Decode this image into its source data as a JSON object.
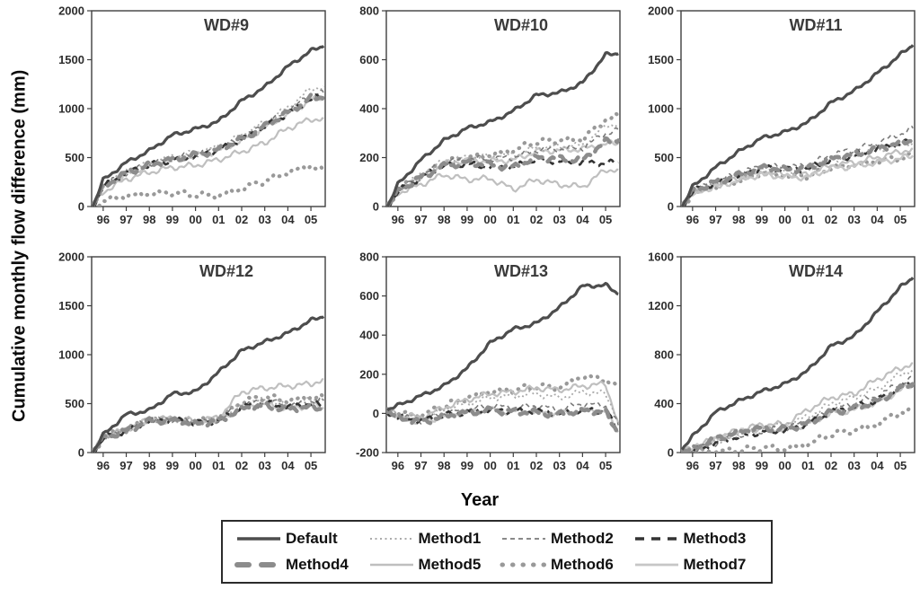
{
  "figure": {
    "y_axis_label": "Cumulative monthly flow difference (mm)",
    "x_axis_label": "Year",
    "frame_color": "#3f3f3f",
    "background": "#ffffff"
  },
  "chart_data": {
    "type": "line",
    "ylabel": "Cumulative monthly flow difference (mm)",
    "xlabel": "Year",
    "x": [
      1995.55,
      1996,
      1997,
      1998,
      1999,
      2000,
      2001,
      2002,
      2003,
      2004,
      2005,
      2005.55
    ],
    "xlim": [
      1995.5,
      2005.62
    ],
    "xtick_years": [
      1996,
      1997,
      1998,
      1999,
      2000,
      2001,
      2002,
      2003,
      2004,
      2005
    ],
    "xtick_labels": [
      "96",
      "97",
      "98",
      "99",
      "00",
      "01",
      "02",
      "03",
      "04",
      "05"
    ],
    "grid": false,
    "legend_position": "bottom",
    "series_styles": [
      {
        "name": "Default",
        "color": "#4d4d4d",
        "width": 3.2,
        "dash": "",
        "cap": "butt",
        "sample_dash": "",
        "sample_width": 3.5
      },
      {
        "name": "Method1",
        "color": "#aaaaaa",
        "width": 1.8,
        "dash": "2 3",
        "cap": "butt",
        "sample_dash": "2 3.5",
        "sample_width": 2
      },
      {
        "name": "Method2",
        "color": "#7a7a7a",
        "width": 1.6,
        "dash": "5 4",
        "cap": "butt",
        "sample_dash": "5 4",
        "sample_width": 1.8
      },
      {
        "name": "Method3",
        "color": "#333333",
        "width": 2.6,
        "dash": "8 6",
        "cap": "butt",
        "sample_dash": "10 8",
        "sample_width": 3.4
      },
      {
        "name": "Method4",
        "color": "#8c8c8c",
        "width": 4.5,
        "dash": "9 8",
        "cap": "round",
        "sample_dash": "13 14",
        "sample_width": 6
      },
      {
        "name": "Method5",
        "color": "#bfbfbf",
        "width": 2.2,
        "dash": "",
        "cap": "butt",
        "sample_dash": "",
        "sample_width": 2.4
      },
      {
        "name": "Method6",
        "color": "#999999",
        "width": 4.2,
        "dash": "0.5 8",
        "cap": "round",
        "sample_dash": "0.5 11",
        "sample_width": 5
      },
      {
        "name": "Method7",
        "color": "#c6c6c6",
        "width": 2.4,
        "dash": "",
        "cap": "butt",
        "sample_dash": "",
        "sample_width": 2.8
      }
    ],
    "panels": [
      {
        "title": "WD#9",
        "ylim": [
          0,
          2000
        ],
        "yticks": [
          0,
          500,
          1000,
          1500,
          2000
        ],
        "series": [
          {
            "name": "Default",
            "values": [
              0,
              270,
              450,
              570,
              730,
              790,
              870,
              1080,
              1220,
              1430,
              1590,
              1640
            ]
          },
          {
            "name": "Method1",
            "values": [
              0,
              210,
              360,
              440,
              510,
              550,
              610,
              730,
              860,
              1010,
              1200,
              1230
            ]
          },
          {
            "name": "Method2",
            "values": [
              0,
              205,
              350,
              430,
              495,
              535,
              590,
              700,
              830,
              980,
              1140,
              1160
            ]
          },
          {
            "name": "Method3",
            "values": [
              0,
              200,
              340,
              420,
              480,
              520,
              575,
              680,
              810,
              950,
              1100,
              1120
            ]
          },
          {
            "name": "Method4",
            "values": [
              0,
              200,
              345,
              425,
              485,
              525,
              580,
              690,
              820,
              960,
              1110,
              1120
            ]
          },
          {
            "name": "Method5",
            "values": [
              0,
              150,
              280,
              350,
              400,
              420,
              480,
              560,
              650,
              800,
              890,
              900
            ]
          },
          {
            "name": "Method6",
            "values": [
              0,
              60,
              110,
              130,
              140,
              120,
              110,
              180,
              260,
              350,
              420,
              360
            ]
          },
          {
            "name": "Method7",
            "values": [
              0,
              195,
              335,
              415,
              475,
              515,
              570,
              675,
              805,
              945,
              1090,
              1110
            ]
          }
        ]
      },
      {
        "title": "WD#10",
        "ylim": [
          0,
          800
        ],
        "yticks": [
          0,
          200,
          400,
          600,
          800
        ],
        "series": [
          {
            "name": "Default",
            "values": [
              0,
              90,
              190,
              270,
              320,
              345,
              390,
              455,
              465,
              505,
              620,
              625
            ]
          },
          {
            "name": "Method1",
            "values": [
              0,
              70,
              130,
              185,
              200,
              205,
              210,
              240,
              245,
              250,
              330,
              340
            ]
          },
          {
            "name": "Method2",
            "values": [
              0,
              65,
              125,
              180,
              195,
              195,
              200,
              230,
              235,
              240,
              300,
              310
            ]
          },
          {
            "name": "Method3",
            "values": [
              0,
              60,
              120,
              170,
              175,
              160,
              160,
              195,
              185,
              180,
              175,
              180
            ]
          },
          {
            "name": "Method4",
            "values": [
              0,
              60,
              120,
              165,
              180,
              170,
              160,
              200,
              195,
              190,
              265,
              270
            ]
          },
          {
            "name": "Method5",
            "values": [
              0,
              55,
              90,
              130,
              110,
              115,
              70,
              110,
              90,
              80,
              150,
              150
            ]
          },
          {
            "name": "Method6",
            "values": [
              0,
              70,
              125,
              180,
              200,
              210,
              230,
              265,
              270,
              275,
              355,
              370
            ]
          },
          {
            "name": "Method7",
            "values": [
              0,
              62,
              122,
              175,
              190,
              185,
              190,
              225,
              230,
              235,
              255,
              260
            ]
          }
        ]
      },
      {
        "title": "WD#11",
        "ylim": [
          0,
          2000
        ],
        "yticks": [
          0,
          500,
          1000,
          1500,
          2000
        ],
        "series": [
          {
            "name": "Default",
            "values": [
              0,
              200,
              400,
              560,
              700,
              760,
              860,
              1060,
              1180,
              1360,
              1550,
              1650
            ]
          },
          {
            "name": "Method1",
            "values": [
              0,
              150,
              240,
              310,
              390,
              370,
              380,
              480,
              520,
              580,
              640,
              650
            ]
          },
          {
            "name": "Method2",
            "values": [
              0,
              160,
              260,
              330,
              420,
              400,
              420,
              530,
              580,
              650,
              740,
              800
            ]
          },
          {
            "name": "Method3",
            "values": [
              0,
              150,
              245,
              315,
              395,
              375,
              385,
              480,
              520,
              585,
              640,
              660
            ]
          },
          {
            "name": "Method4",
            "values": [
              0,
              155,
              250,
              320,
              400,
              380,
              390,
              490,
              530,
              590,
              650,
              680
            ]
          },
          {
            "name": "Method5",
            "values": [
              0,
              135,
              215,
              280,
              350,
              330,
              330,
              420,
              450,
              500,
              560,
              590
            ]
          },
          {
            "name": "Method6",
            "values": [
              0,
              130,
              210,
              270,
              340,
              310,
              310,
              400,
              420,
              460,
              500,
              510
            ]
          },
          {
            "name": "Method7",
            "values": [
              0,
              130,
              205,
              265,
              330,
              300,
              300,
              390,
              410,
              450,
              490,
              520
            ]
          }
        ]
      },
      {
        "title": "WD#12",
        "ylim": [
          0,
          2000
        ],
        "yticks": [
          0,
          500,
          1000,
          1500,
          2000
        ],
        "series": [
          {
            "name": "Default",
            "values": [
              0,
              180,
              390,
              430,
              600,
              620,
              820,
              1040,
              1130,
              1220,
              1350,
              1390
            ]
          },
          {
            "name": "Method1",
            "values": [
              0,
              150,
              235,
              330,
              345,
              310,
              340,
              490,
              540,
              490,
              540,
              560
            ]
          },
          {
            "name": "Method2",
            "values": [
              0,
              148,
              232,
              328,
              340,
              305,
              335,
              480,
              530,
              480,
              520,
              530
            ]
          },
          {
            "name": "Method3",
            "values": [
              0,
              145,
              228,
              325,
              335,
              300,
              330,
              470,
              510,
              460,
              500,
              480
            ]
          },
          {
            "name": "Method4",
            "values": [
              0,
              145,
              225,
              320,
              330,
              295,
              320,
              450,
              480,
              440,
              470,
              440
            ]
          },
          {
            "name": "Method5",
            "values": [
              0,
              155,
              240,
              335,
              355,
              320,
              360,
              620,
              660,
              680,
              700,
              750
            ]
          },
          {
            "name": "Method6",
            "values": [
              0,
              152,
              238,
              332,
              350,
              315,
              350,
              520,
              570,
              530,
              570,
              560
            ]
          },
          {
            "name": "Method7",
            "values": [
              0,
              145,
              226,
              322,
              332,
              298,
              325,
              460,
              495,
              450,
              485,
              460
            ]
          }
        ]
      },
      {
        "title": "WD#13",
        "ylim": [
          -200,
          800
        ],
        "yticks": [
          -200,
          0,
          200,
          400,
          600,
          800
        ],
        "series": [
          {
            "name": "Default",
            "values": [
              20,
              40,
              90,
              140,
              230,
              360,
              430,
              460,
              540,
              650,
              655,
              610
            ]
          },
          {
            "name": "Method1",
            "values": [
              10,
              -10,
              -30,
              20,
              50,
              80,
              90,
              100,
              80,
              110,
              100,
              -30
            ]
          },
          {
            "name": "Method2",
            "values": [
              10,
              -15,
              -35,
              0,
              20,
              40,
              30,
              40,
              20,
              50,
              40,
              -60
            ]
          },
          {
            "name": "Method3",
            "values": [
              10,
              -20,
              -40,
              -10,
              10,
              20,
              10,
              10,
              0,
              20,
              10,
              -90
            ]
          },
          {
            "name": "Method4",
            "values": [
              10,
              -20,
              -45,
              -15,
              5,
              15,
              10,
              5,
              -5,
              15,
              5,
              -100
            ]
          },
          {
            "name": "Method5",
            "values": [
              10,
              -5,
              -20,
              30,
              70,
              100,
              110,
              130,
              120,
              140,
              150,
              -50
            ]
          },
          {
            "name": "Method6",
            "values": [
              10,
              0,
              -10,
              40,
              80,
              110,
              120,
              140,
              130,
              190,
              175,
              120
            ]
          },
          {
            "name": "Method7",
            "values": [
              10,
              -20,
              -45,
              -15,
              5,
              15,
              10,
              8,
              -5,
              15,
              10,
              -95
            ]
          }
        ]
      },
      {
        "title": "WD#14",
        "ylim": [
          0,
          1600
        ],
        "yticks": [
          0,
          400,
          800,
          1200,
          1600
        ],
        "series": [
          {
            "name": "Default",
            "values": [
              30,
              130,
              330,
              420,
              500,
              560,
              670,
              870,
              950,
              1150,
              1350,
              1430
            ]
          },
          {
            "name": "Method1",
            "values": [
              5,
              20,
              90,
              150,
              200,
              230,
              290,
              400,
              450,
              520,
              640,
              680
            ]
          },
          {
            "name": "Method2",
            "values": [
              5,
              15,
              80,
              140,
              180,
              200,
              250,
              350,
              400,
              460,
              570,
              600
            ]
          },
          {
            "name": "Method3",
            "values": [
              5,
              10,
              70,
              130,
              170,
              180,
              230,
              330,
              370,
              430,
              540,
              570
            ]
          },
          {
            "name": "Method4",
            "values": [
              5,
              30,
              110,
              170,
              200,
              190,
              240,
              330,
              360,
              420,
              520,
              560
            ]
          },
          {
            "name": "Method5",
            "values": [
              5,
              35,
              120,
              180,
              230,
              230,
              350,
              450,
              480,
              600,
              690,
              730
            ]
          },
          {
            "name": "Method6",
            "values": [
              0,
              0,
              10,
              20,
              40,
              30,
              70,
              150,
              180,
              230,
              330,
              330
            ]
          },
          {
            "name": "Method7",
            "values": [
              5,
              28,
              105,
              165,
              195,
              185,
              235,
              320,
              350,
              410,
              510,
              550
            ]
          }
        ]
      }
    ]
  },
  "legend": {
    "rows": [
      [
        "Default",
        "Method1",
        "Method2",
        "Method3"
      ],
      [
        "Method4",
        "Method5",
        "Method6",
        "Method7"
      ]
    ]
  }
}
